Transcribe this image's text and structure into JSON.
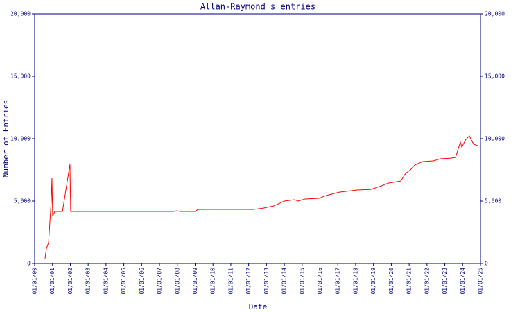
{
  "chart_data": {
    "type": "line",
    "title": "Allan-Raymond's entries",
    "x_label": "Date",
    "y_label": "Number of Entries",
    "series": [
      {
        "name": "entries",
        "color": "#ff0000",
        "x": [
          2000.58,
          2000.66,
          2000.78,
          2000.93,
          2000.97,
          2001.01,
          2001.13,
          2001.56,
          2001.98,
          2002.02,
          2007.78,
          2007.97,
          2008.16,
          2009.02,
          2009.14,
          2012.25,
          2012.83,
          2013.41,
          2014.0,
          2014.58,
          2014.77,
          2015.16,
          2015.94,
          2016.33,
          2017.11,
          2018.08,
          2018.86,
          2019.44,
          2019.83,
          2020.53,
          2020.8,
          2021.07,
          2021.31,
          2021.77,
          2022.36,
          2022.75,
          2023.33,
          2023.6,
          2023.87,
          2023.95,
          2024.18,
          2024.38,
          2024.61,
          2024.84
        ],
        "values": [
          400,
          1200,
          1670,
          5000,
          6830,
          3780,
          4170,
          4170,
          7940,
          4170,
          4170,
          4220,
          4170,
          4170,
          4330,
          4330,
          4440,
          4610,
          5000,
          5110,
          5000,
          5170,
          5220,
          5440,
          5720,
          5890,
          5940,
          6220,
          6440,
          6610,
          7220,
          7500,
          7890,
          8170,
          8220,
          8390,
          8440,
          8500,
          9720,
          9330,
          9940,
          10220,
          9560,
          9440
        ]
      }
    ],
    "xlim": [
      2000,
      2025
    ],
    "xticks": [
      {
        "value": 2000,
        "label": "01/01/00"
      },
      {
        "value": 2001,
        "label": "01/01/01"
      },
      {
        "value": 2002,
        "label": "01/01/02"
      },
      {
        "value": 2003,
        "label": "01/01/03"
      },
      {
        "value": 2004,
        "label": "01/01/04"
      },
      {
        "value": 2005,
        "label": "01/01/05"
      },
      {
        "value": 2006,
        "label": "01/01/06"
      },
      {
        "value": 2007,
        "label": "01/01/07"
      },
      {
        "value": 2008,
        "label": "01/01/08"
      },
      {
        "value": 2009,
        "label": "01/01/09"
      },
      {
        "value": 2010,
        "label": "01/01/10"
      },
      {
        "value": 2011,
        "label": "01/01/11"
      },
      {
        "value": 2012,
        "label": "01/01/12"
      },
      {
        "value": 2013,
        "label": "01/01/13"
      },
      {
        "value": 2014,
        "label": "01/01/14"
      },
      {
        "value": 2015,
        "label": "01/01/15"
      },
      {
        "value": 2016,
        "label": "01/01/16"
      },
      {
        "value": 2017,
        "label": "01/01/17"
      },
      {
        "value": 2018,
        "label": "01/01/18"
      },
      {
        "value": 2019,
        "label": "01/01/19"
      },
      {
        "value": 2020,
        "label": "01/01/20"
      },
      {
        "value": 2021,
        "label": "01/01/21"
      },
      {
        "value": 2022,
        "label": "01/01/22"
      },
      {
        "value": 2023,
        "label": "01/01/23"
      },
      {
        "value": 2024,
        "label": "01/01/24"
      },
      {
        "value": 2025,
        "label": "01/01/25"
      }
    ],
    "ylim": [
      0,
      20000
    ],
    "yticks": [
      0,
      {
        "value": 5000,
        "label": "5,000"
      },
      {
        "value": 10000,
        "label": "10,000"
      },
      {
        "value": 15000,
        "label": "15,000"
      },
      {
        "value": 20000,
        "label": "20,000"
      }
    ],
    "y2lim": [
      0,
      20000
    ],
    "y2ticks": [
      0,
      {
        "value": 5000,
        "label": "5,000"
      },
      {
        "value": 10000,
        "label": "10,000"
      },
      {
        "value": 15000,
        "label": "15,000"
      },
      {
        "value": 20000,
        "label": "20,000"
      }
    ],
    "axis_color": "#000080"
  }
}
